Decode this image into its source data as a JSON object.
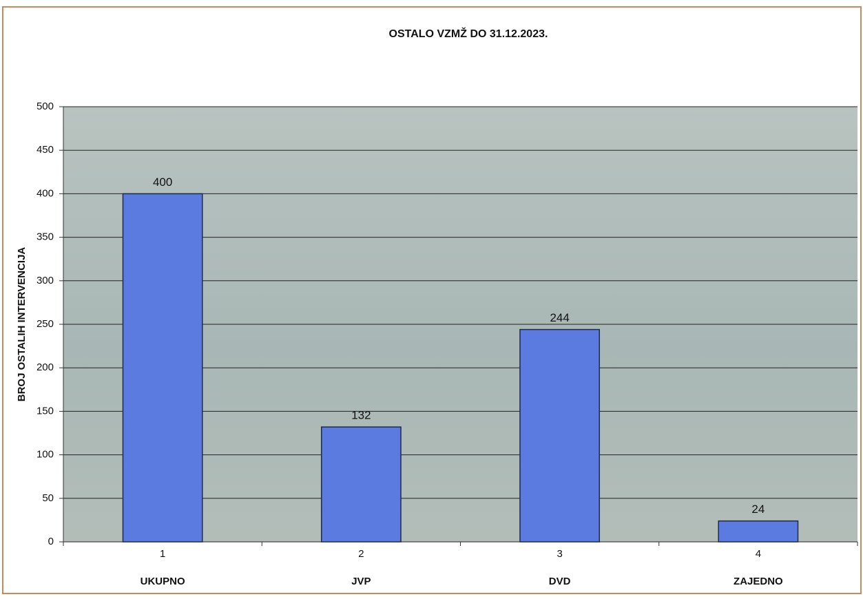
{
  "chart_data": {
    "type": "bar",
    "title": "OSTALO VZMŽ DO 31.12.2023.",
    "y_label": "BROJ OSTALIH INTERVENCIJA",
    "categories": [
      "1",
      "2",
      "3",
      "4"
    ],
    "category_names": [
      "UKUPNO",
      "JVP",
      "DVD",
      "ZAJEDNO"
    ],
    "values": [
      400,
      132,
      244,
      24
    ],
    "color": "#5b7be0",
    "ylim": [
      0,
      500
    ],
    "yticks": [
      0,
      50,
      100,
      150,
      200,
      250,
      300,
      350,
      400,
      450,
      500
    ],
    "grid": true
  }
}
